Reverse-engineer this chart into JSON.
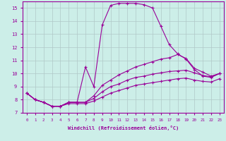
{
  "xlabel": "Windchill (Refroidissement éolien,°C)",
  "background_color": "#cceee8",
  "line_color": "#990099",
  "grid_color": "#b0c8c8",
  "ylim": [
    7,
    15.5
  ],
  "xlim": [
    -0.5,
    23.5
  ],
  "yticks": [
    7,
    8,
    9,
    10,
    11,
    12,
    13,
    14,
    15
  ],
  "xticks": [
    0,
    1,
    2,
    3,
    4,
    5,
    6,
    7,
    8,
    9,
    10,
    11,
    12,
    13,
    14,
    15,
    16,
    17,
    18,
    19,
    20,
    21,
    22,
    23
  ],
  "curves": [
    {
      "x": [
        0,
        1,
        2,
        3,
        4,
        5,
        6,
        7,
        8,
        9,
        10,
        11,
        12,
        13,
        14,
        15,
        16,
        17,
        18,
        19,
        20,
        21,
        22,
        23
      ],
      "y": [
        8.5,
        8.0,
        7.8,
        7.5,
        7.5,
        7.8,
        7.8,
        10.5,
        9.0,
        13.7,
        15.2,
        15.35,
        15.35,
        15.35,
        15.25,
        15.0,
        13.6,
        12.2,
        11.5,
        11.1,
        10.3,
        9.8,
        9.7,
        10.0
      ]
    },
    {
      "x": [
        0,
        1,
        2,
        3,
        4,
        5,
        6,
        7,
        8,
        9,
        10,
        11,
        12,
        13,
        14,
        15,
        16,
        17,
        18,
        19,
        20,
        21,
        22,
        23
      ],
      "y": [
        8.5,
        8.0,
        7.8,
        7.5,
        7.5,
        7.8,
        7.8,
        7.8,
        8.3,
        9.1,
        9.5,
        9.9,
        10.2,
        10.5,
        10.7,
        10.9,
        11.1,
        11.2,
        11.45,
        11.15,
        10.4,
        10.1,
        9.8,
        10.0
      ]
    },
    {
      "x": [
        0,
        1,
        2,
        3,
        4,
        5,
        6,
        7,
        8,
        9,
        10,
        11,
        12,
        13,
        14,
        15,
        16,
        17,
        18,
        19,
        20,
        21,
        22,
        23
      ],
      "y": [
        8.5,
        8.0,
        7.8,
        7.5,
        7.5,
        7.8,
        7.8,
        7.8,
        8.1,
        8.6,
        9.0,
        9.2,
        9.5,
        9.7,
        9.8,
        9.95,
        10.05,
        10.15,
        10.2,
        10.25,
        10.05,
        9.85,
        9.75,
        10.0
      ]
    },
    {
      "x": [
        0,
        1,
        2,
        3,
        4,
        5,
        6,
        7,
        8,
        9,
        10,
        11,
        12,
        13,
        14,
        15,
        16,
        17,
        18,
        19,
        20,
        21,
        22,
        23
      ],
      "y": [
        8.5,
        8.0,
        7.8,
        7.5,
        7.5,
        7.7,
        7.7,
        7.7,
        7.9,
        8.2,
        8.5,
        8.7,
        8.9,
        9.1,
        9.2,
        9.3,
        9.4,
        9.5,
        9.6,
        9.65,
        9.5,
        9.4,
        9.35,
        9.6
      ]
    }
  ]
}
